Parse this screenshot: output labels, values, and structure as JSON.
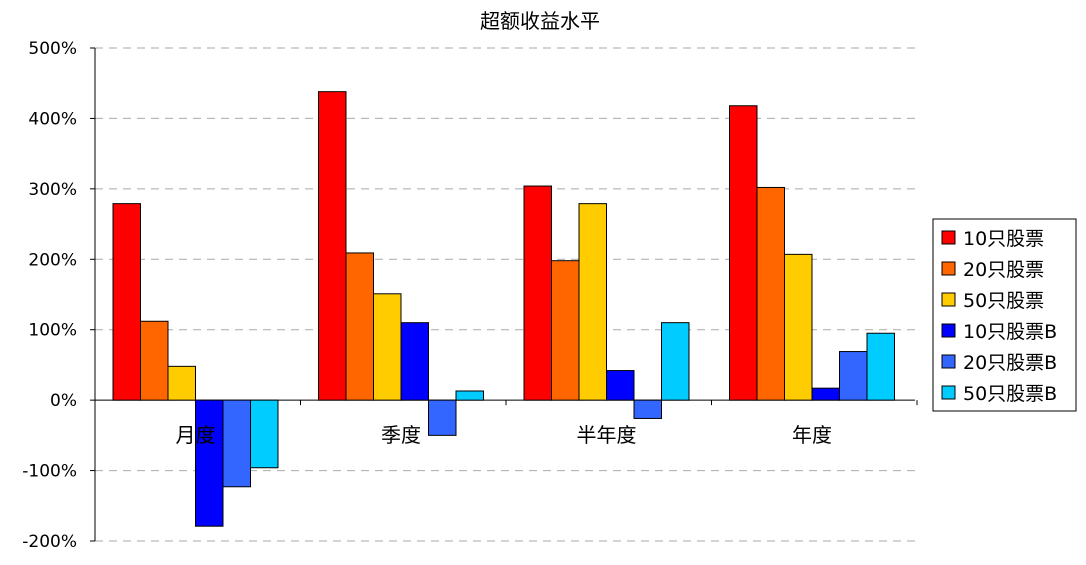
{
  "chart_data": {
    "type": "bar",
    "title": "超额收益水平",
    "categories": [
      "月度",
      "季度",
      "半年度",
      "年度"
    ],
    "series": [
      {
        "name": "10只股票",
        "color": "#ff0000",
        "values": [
          279,
          438,
          304,
          418
        ]
      },
      {
        "name": "20只股票",
        "color": "#ff6600",
        "values": [
          112,
          209,
          198,
          302
        ]
      },
      {
        "name": "50只股票",
        "color": "#ffcc00",
        "values": [
          48,
          151,
          279,
          207
        ]
      },
      {
        "name": "10只股票B",
        "color": "#0000ff",
        "values": [
          -179,
          110,
          42,
          17
        ]
      },
      {
        "name": "20只股票B",
        "color": "#3366ff",
        "values": [
          -123,
          -50,
          -26,
          69
        ]
      },
      {
        "name": "50只股票B",
        "color": "#00ccff",
        "values": [
          -96,
          13,
          110,
          95
        ]
      }
    ],
    "ylim": [
      -200,
      500
    ],
    "yticks": [
      500,
      400,
      300,
      200,
      100,
      0,
      -100,
      -200
    ],
    "ytick_labels": [
      "500%",
      "400%",
      "300%",
      "200%",
      "100%",
      "0%",
      "-100%",
      "-200%"
    ],
    "grid": true,
    "legend": "right"
  }
}
